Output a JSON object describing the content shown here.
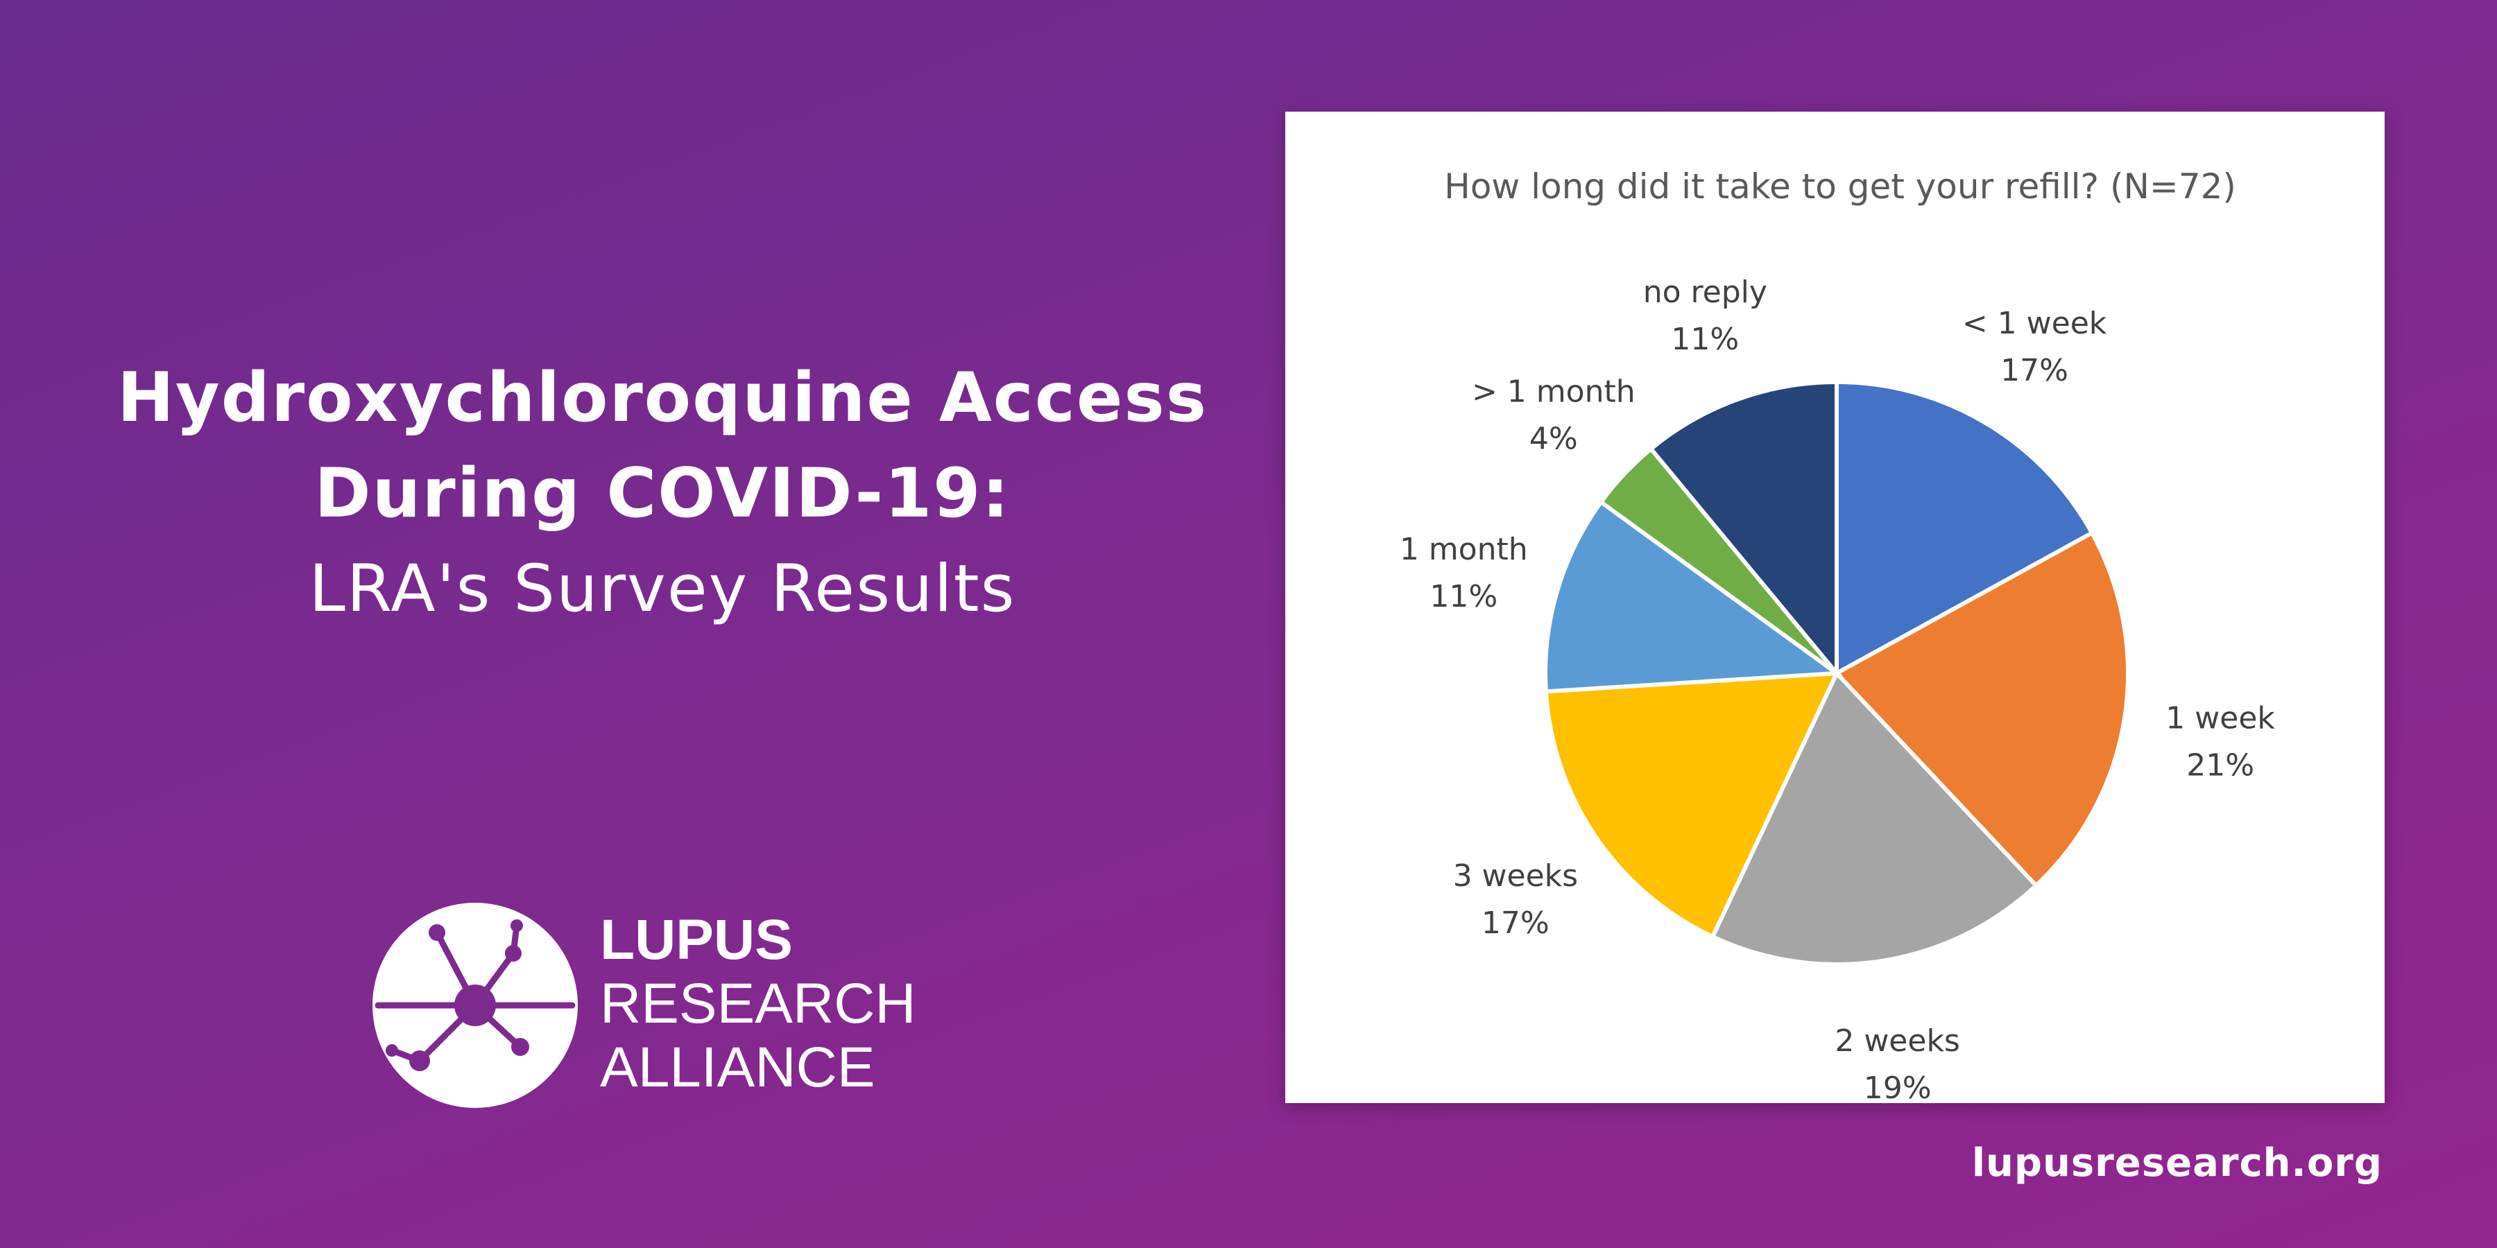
{
  "headline": {
    "line1": "Hydroxychloroquine Access",
    "line2": "During COVID-19:",
    "line3": "LRA's Survey Results"
  },
  "logo": {
    "line1": "LUPUS",
    "line2": "RESEARCH",
    "line3": "ALLIANCE",
    "icon": "network-circle-icon"
  },
  "footer": {
    "url": "lupusresearch.org"
  },
  "colors": {
    "background_start": "#6a2b8c",
    "background_end": "#93258f",
    "card": "#ffffff",
    "text": "#ffffff"
  },
  "chart_data": {
    "type": "pie",
    "title": "How long did it take to get your refill? (N=72)",
    "legend": "none",
    "slices": [
      {
        "label": "< 1 week",
        "value": 17,
        "value_label": "17%",
        "color": "#4472C4"
      },
      {
        "label": "1 week",
        "value": 21,
        "value_label": "21%",
        "color": "#ED7D31"
      },
      {
        "label": "2 weeks",
        "value": 19,
        "value_label": "19%",
        "color": "#A5A5A5"
      },
      {
        "label": "3 weeks",
        "value": 17,
        "value_label": "17%",
        "color": "#FFC000"
      },
      {
        "label": "1 month",
        "value": 11,
        "value_label": "11%",
        "color": "#5B9BD5"
      },
      {
        "label": "> 1 month",
        "value": 4,
        "value_label": "4%",
        "color": "#70AD47"
      },
      {
        "label": "no reply",
        "value": 11,
        "value_label": "11%",
        "color": "#264478"
      }
    ]
  }
}
